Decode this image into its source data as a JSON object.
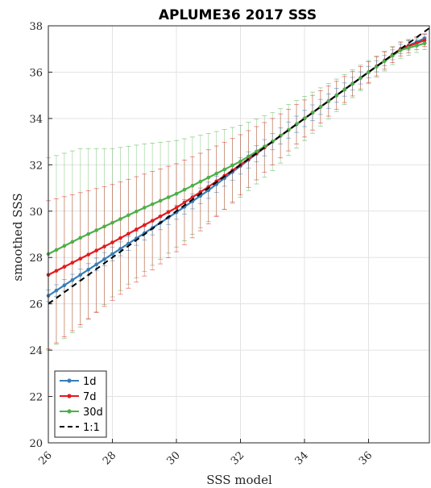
{
  "chart_data": {
    "type": "line",
    "title": "APLUME36 2017 SSS",
    "xlabel": "SSS model",
    "ylabel": "smoothed SSS",
    "xlim": [
      26,
      37.9
    ],
    "ylim": [
      20,
      38
    ],
    "xticks": [
      "26",
      "28",
      "30",
      "32",
      "34",
      "36"
    ],
    "yticks": [
      "20",
      "22",
      "24",
      "26",
      "28",
      "30",
      "32",
      "34",
      "36",
      "38"
    ],
    "grid": true,
    "legend_position": "bottom-left",
    "series": [
      {
        "name": "1d",
        "color": "#377eb8",
        "x": [
          26,
          27,
          28,
          29,
          30,
          31,
          32,
          33,
          34,
          35,
          36,
          37,
          37.9
        ],
        "y": [
          26.35,
          27.25,
          28.15,
          29.05,
          29.95,
          30.9,
          31.95,
          33.0,
          34.0,
          35.0,
          36.0,
          37.0,
          37.55
        ],
        "err": [
          0.25,
          0.25,
          0.3,
          0.3,
          0.3,
          0.35,
          0.35,
          0.35,
          0.35,
          0.3,
          0.25,
          0.2,
          0.2
        ]
      },
      {
        "name": "7d",
        "color": "#e41a1c",
        "x": [
          26,
          27,
          28,
          29,
          30,
          31,
          32,
          33,
          34,
          35,
          36,
          37,
          37.9
        ],
        "y": [
          27.25,
          27.95,
          28.65,
          29.4,
          30.15,
          31.05,
          32.0,
          33.0,
          34.0,
          35.0,
          36.0,
          37.0,
          37.45
        ],
        "err": [
          3.2,
          2.85,
          2.5,
          2.2,
          1.9,
          1.6,
          1.3,
          1.0,
          0.8,
          0.6,
          0.45,
          0.3,
          0.25
        ]
      },
      {
        "name": "30d",
        "color": "#4daf4a",
        "x": [
          26,
          27,
          28,
          29,
          30,
          31,
          32,
          33,
          34,
          35,
          36,
          37,
          37.9
        ],
        "y": [
          28.15,
          28.85,
          29.5,
          30.15,
          30.75,
          31.45,
          32.15,
          33.0,
          34.0,
          35.0,
          36.0,
          36.95,
          37.3
        ],
        "err": [
          4.15,
          3.85,
          3.2,
          2.75,
          2.3,
          1.9,
          1.55,
          1.25,
          0.95,
          0.7,
          0.5,
          0.35,
          0.25
        ]
      },
      {
        "name": "1:1",
        "color": "#000000",
        "x": [
          26,
          37.9
        ],
        "y": [
          26,
          37.9
        ]
      }
    ]
  }
}
